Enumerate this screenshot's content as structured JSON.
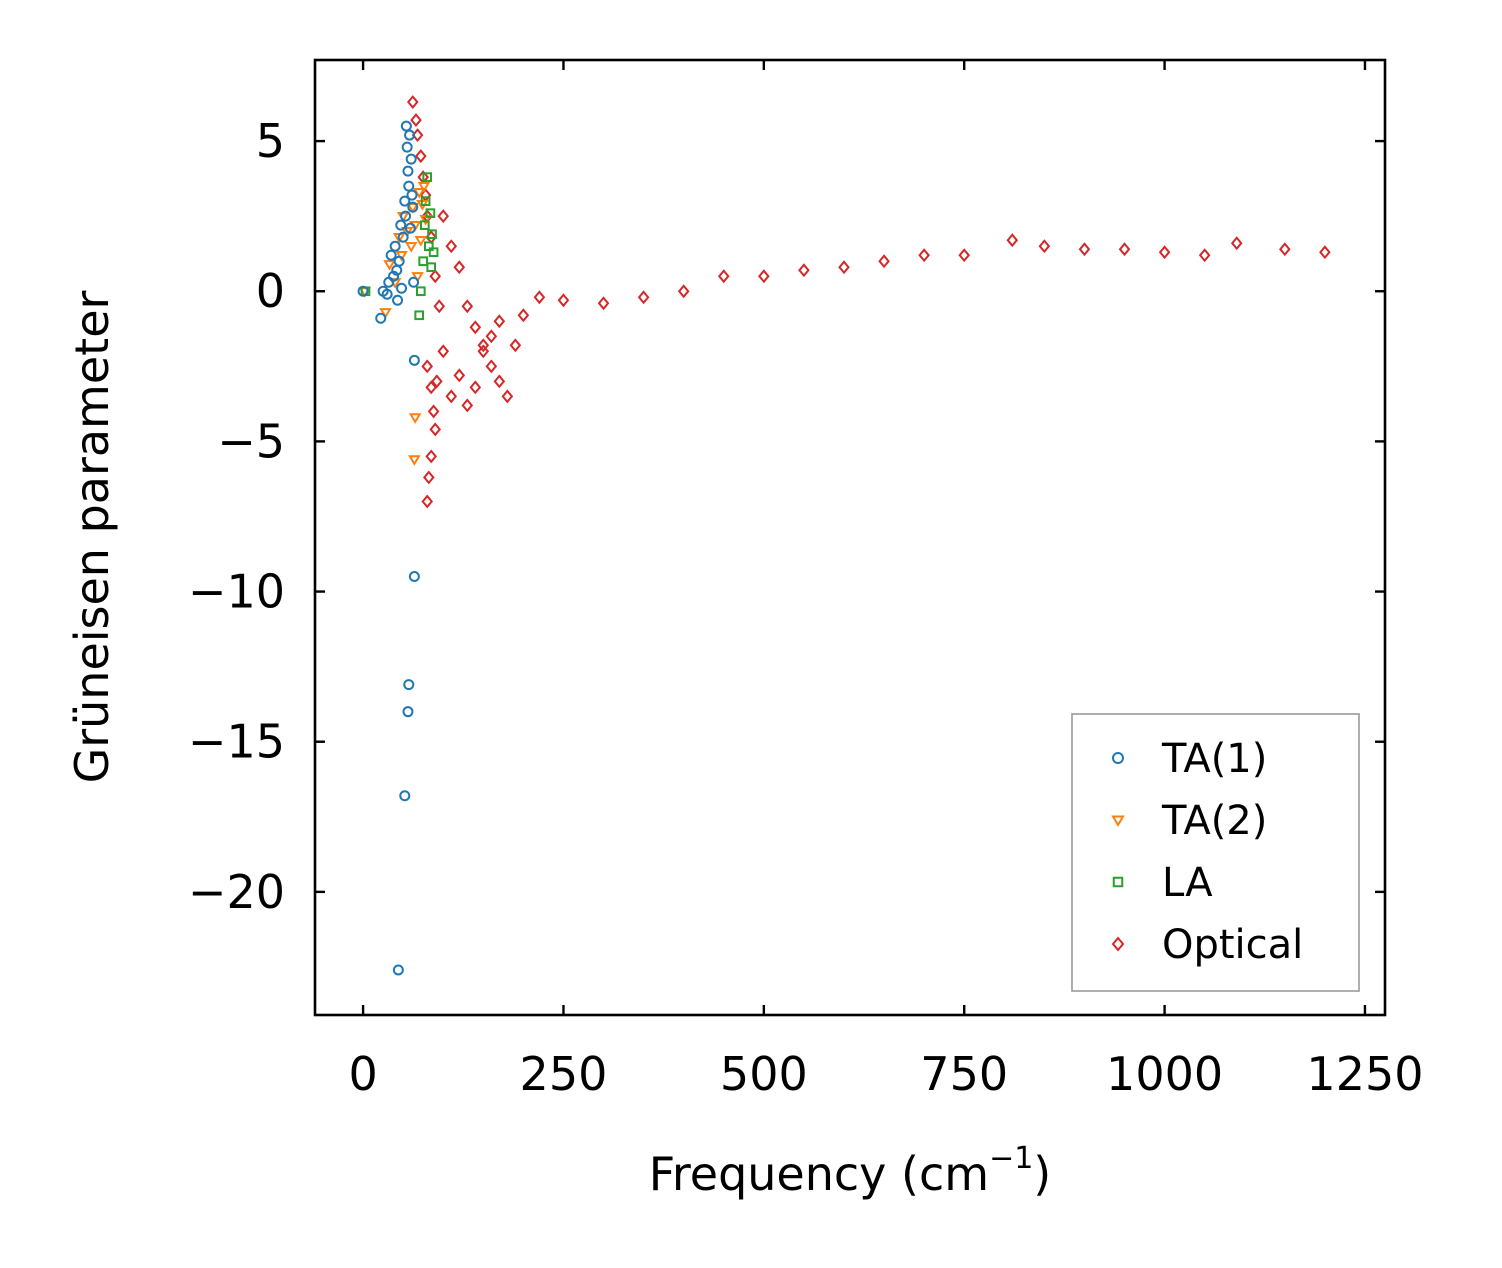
{
  "chart_data": {
    "type": "scatter",
    "title": "",
    "xlabel": "Frequency (cm",
    "xlabel_sup": "−1",
    "xlabel_close": ")",
    "ylabel": "Grüneisen parameter",
    "xlim": [
      -60,
      1275
    ],
    "ylim": [
      -24.1,
      7.7
    ],
    "xticks": [
      0,
      250,
      500,
      750,
      1000,
      1250
    ],
    "xtick_labels": [
      "0",
      "250",
      "500",
      "750",
      "1000",
      "1250"
    ],
    "yticks": [
      5,
      0,
      -5,
      -10,
      -15,
      -20
    ],
    "ytick_labels": [
      "5",
      "0",
      "−5",
      "−10",
      "−15",
      "−20"
    ],
    "legend_position": "bottom-right",
    "grid": false,
    "series": [
      {
        "name": "TA(1)",
        "marker": "circle",
        "color": "#1f77b4",
        "points": [
          [
            0,
            0
          ],
          [
            22,
            -0.9
          ],
          [
            25,
            0
          ],
          [
            30,
            -0.1
          ],
          [
            32,
            0.3
          ],
          [
            35,
            1.2
          ],
          [
            38,
            0.5
          ],
          [
            40,
            1.5
          ],
          [
            42,
            0.7
          ],
          [
            43,
            -0.3
          ],
          [
            45,
            1.0
          ],
          [
            47,
            2.2
          ],
          [
            48,
            0.1
          ],
          [
            50,
            1.8
          ],
          [
            52,
            3.0
          ],
          [
            53,
            2.5
          ],
          [
            54,
            5.5
          ],
          [
            55,
            4.8
          ],
          [
            56,
            4.0
          ],
          [
            57,
            3.5
          ],
          [
            58,
            5.2
          ],
          [
            59,
            2.1
          ],
          [
            60,
            4.4
          ],
          [
            61,
            3.2
          ],
          [
            62,
            2.8
          ],
          [
            63,
            0.3
          ],
          [
            64,
            -2.3
          ],
          [
            64,
            -9.5
          ],
          [
            57,
            -13.1
          ],
          [
            56,
            -14.0
          ],
          [
            52,
            -16.8
          ],
          [
            44,
            -22.6
          ]
        ]
      },
      {
        "name": "TA(2)",
        "marker": "triangle-down",
        "color": "#ff7f0e",
        "points": [
          [
            2,
            0
          ],
          [
            28,
            -0.7
          ],
          [
            33,
            0.9
          ],
          [
            40,
            0.3
          ],
          [
            45,
            1.8
          ],
          [
            48,
            1.2
          ],
          [
            50,
            2.5
          ],
          [
            55,
            2.0
          ],
          [
            60,
            1.5
          ],
          [
            62,
            2.8
          ],
          [
            65,
            2.2
          ],
          [
            68,
            0.5
          ],
          [
            70,
            3.3
          ],
          [
            72,
            1.7
          ],
          [
            74,
            2.9
          ],
          [
            76,
            3.5
          ],
          [
            78,
            2.4
          ],
          [
            65,
            -4.2
          ],
          [
            64,
            -5.6
          ]
        ]
      },
      {
        "name": "LA",
        "marker": "square",
        "color": "#2ca02c",
        "points": [
          [
            3,
            0
          ],
          [
            70,
            -0.8
          ],
          [
            72,
            0
          ],
          [
            75,
            1.0
          ],
          [
            77,
            2.2
          ],
          [
            78,
            3.0
          ],
          [
            80,
            3.8
          ],
          [
            82,
            1.5
          ],
          [
            84,
            2.6
          ],
          [
            85,
            0.8
          ],
          [
            86,
            1.9
          ],
          [
            88,
            1.3
          ]
        ]
      },
      {
        "name": "Optical",
        "marker": "diamond",
        "color": "#d62728",
        "points": [
          [
            62,
            6.3
          ],
          [
            66,
            5.7
          ],
          [
            68,
            5.2
          ],
          [
            72,
            4.5
          ],
          [
            75,
            3.8
          ],
          [
            78,
            3.2
          ],
          [
            80,
            2.5
          ],
          [
            85,
            1.8
          ],
          [
            90,
            0.5
          ],
          [
            95,
            -0.5
          ],
          [
            100,
            2.5
          ],
          [
            110,
            1.5
          ],
          [
            120,
            0.8
          ],
          [
            130,
            -0.5
          ],
          [
            140,
            -1.2
          ],
          [
            150,
            -1.8
          ],
          [
            160,
            -2.5
          ],
          [
            170,
            -3.0
          ],
          [
            180,
            -3.5
          ],
          [
            190,
            -1.8
          ],
          [
            200,
            -0.8
          ],
          [
            220,
            -0.2
          ],
          [
            250,
            -0.3
          ],
          [
            300,
            -0.4
          ],
          [
            350,
            -0.2
          ],
          [
            400,
            0
          ],
          [
            450,
            0.5
          ],
          [
            500,
            0.5
          ],
          [
            550,
            0.7
          ],
          [
            600,
            0.8
          ],
          [
            650,
            1.0
          ],
          [
            700,
            1.2
          ],
          [
            750,
            1.2
          ],
          [
            810,
            1.7
          ],
          [
            850,
            1.5
          ],
          [
            900,
            1.4
          ],
          [
            950,
            1.4
          ],
          [
            1000,
            1.3
          ],
          [
            1050,
            1.2
          ],
          [
            1090,
            1.6
          ],
          [
            1150,
            1.4
          ],
          [
            1200,
            1.3
          ],
          [
            80,
            -2.5
          ],
          [
            85,
            -3.2
          ],
          [
            88,
            -4.0
          ],
          [
            90,
            -4.6
          ],
          [
            85,
            -5.5
          ],
          [
            82,
            -6.2
          ],
          [
            80,
            -7.0
          ],
          [
            92,
            -3.0
          ],
          [
            100,
            -2.0
          ],
          [
            110,
            -3.5
          ],
          [
            120,
            -2.8
          ],
          [
            130,
            -3.8
          ],
          [
            140,
            -3.2
          ],
          [
            150,
            -2.0
          ],
          [
            160,
            -1.5
          ],
          [
            170,
            -1.0
          ]
        ]
      }
    ]
  }
}
